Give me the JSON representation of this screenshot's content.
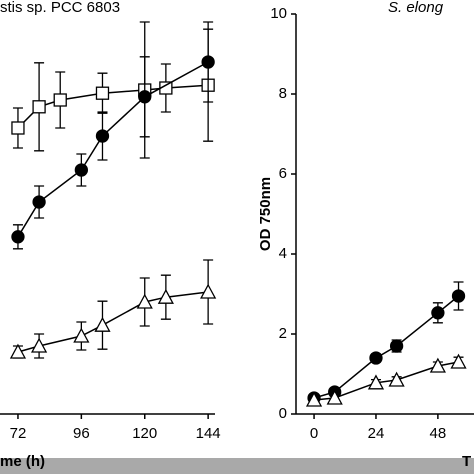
{
  "chart_data": [
    {
      "type": "line",
      "title": "stis sp. PCC 6803",
      "x_label": "me (h)",
      "xlim": [
        65.2,
        146.6
      ],
      "ylim": [
        0,
        10
      ],
      "xticks": [
        72,
        96,
        120,
        144
      ],
      "series": [
        {
          "marker": "square",
          "color": "#000000",
          "x": [
            72,
            80,
            88,
            104,
            120,
            128,
            144
          ],
          "values": [
            7.15,
            7.68,
            7.85,
            8.02,
            8.1,
            8.15,
            8.22
          ],
          "errors": [
            0.5,
            1.1,
            0.7,
            0.5,
            1.7,
            0.6,
            1.4
          ]
        },
        {
          "marker": "circle",
          "color": "#000000",
          "x": [
            72,
            80,
            96,
            104,
            120,
            144
          ],
          "values": [
            4.43,
            5.3,
            6.1,
            6.95,
            7.93,
            8.8
          ],
          "errors": [
            0.3,
            0.4,
            0.4,
            0.6,
            1.0,
            1.0
          ]
        },
        {
          "marker": "triangle",
          "color": "#000000",
          "x": [
            72,
            80,
            96,
            104,
            120,
            128,
            144
          ],
          "values": [
            1.55,
            1.7,
            1.95,
            2.22,
            2.8,
            2.92,
            3.05
          ],
          "errors": [
            0.15,
            0.3,
            0.35,
            0.6,
            0.6,
            0.55,
            0.8
          ]
        }
      ]
    },
    {
      "type": "line",
      "title": "S. elong",
      "x_label": "T",
      "y_label": "OD 750nm",
      "xlim": [
        -7,
        62
      ],
      "ylim": [
        0,
        10
      ],
      "xticks": [
        0,
        24,
        48
      ],
      "yticks": [
        0,
        2,
        4,
        6,
        8,
        10
      ],
      "series": [
        {
          "marker": "circle",
          "color": "#000000",
          "x": [
            0,
            8,
            24,
            32,
            48,
            56
          ],
          "values": [
            0.4,
            0.55,
            1.4,
            1.7,
            2.53,
            2.95
          ],
          "errors": [
            0.05,
            0.08,
            0.1,
            0.15,
            0.25,
            0.35
          ]
        },
        {
          "marker": "triangle",
          "color": "#000000",
          "x": [
            0,
            8,
            24,
            32,
            48,
            56
          ],
          "values": [
            0.35,
            0.4,
            0.78,
            0.85,
            1.2,
            1.3
          ],
          "errors": [
            0.05,
            0.05,
            0.08,
            0.08,
            0.1,
            0.12
          ]
        }
      ]
    }
  ]
}
